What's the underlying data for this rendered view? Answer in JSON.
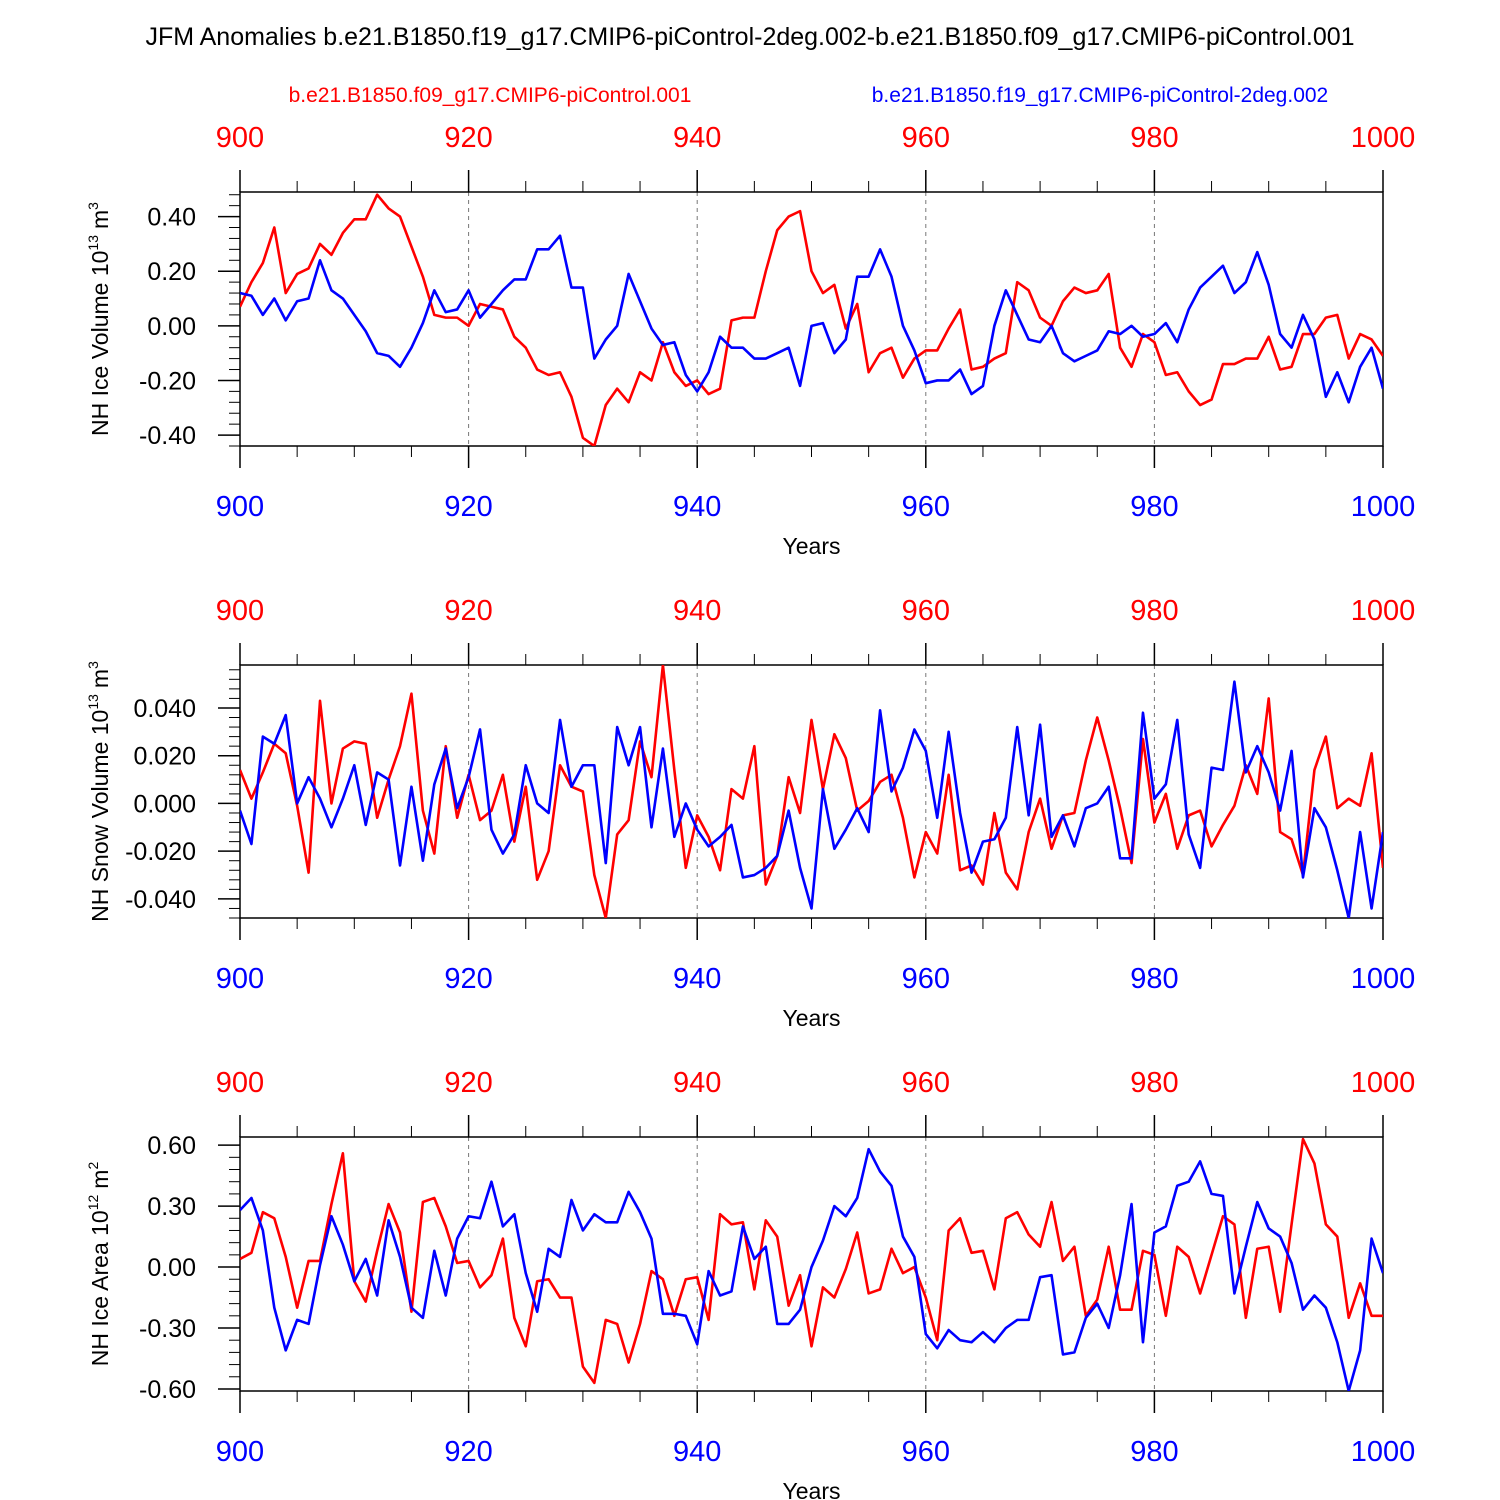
{
  "title": "JFM Anomalies b.e21.B1850.f19_g17.CMIP6-piControl-2deg.002-b.e21.B1850.f09_g17.CMIP6-piControl.001",
  "legend": {
    "red_label": "b.e21.B1850.f09_g17.CMIP6-piControl.001",
    "blue_label": "b.e21.B1850.f19_g17.CMIP6-piControl-2deg.002"
  },
  "colors": {
    "red": "#ff0000",
    "blue": "#0000ff",
    "axis": "#000000",
    "grid": "#777777"
  },
  "chart_data": [
    {
      "type": "line",
      "ylabel": "NH Ice Volume 10",
      "ylabel_exp": "13",
      "ylabel_unit": "m",
      "ylabel_unit_exp": "3",
      "xlabel": "Years",
      "xlim": [
        900,
        1000
      ],
      "ylim": [
        -0.44,
        0.49
      ],
      "xticks": [
        900,
        920,
        940,
        960,
        980,
        1000
      ],
      "xtick_labels": [
        "900",
        "920",
        "940",
        "960",
        "980",
        "1000"
      ],
      "yticks": [
        0.4,
        0.2,
        0.0,
        -0.2,
        -0.4
      ],
      "ytick_labels": [
        "0.40",
        "0.20",
        "0.00",
        "-0.20",
        "-0.40"
      ],
      "series": [
        {
          "name": "b.e21.B1850.f09_g17.CMIP6-piControl.001",
          "color": "red",
          "values": [
            0.07,
            0.16,
            0.23,
            0.36,
            0.12,
            0.19,
            0.21,
            0.3,
            0.26,
            0.34,
            0.39,
            0.39,
            0.48,
            0.43,
            0.4,
            0.29,
            0.18,
            0.04,
            0.03,
            0.03,
            0.0,
            0.08,
            0.07,
            0.06,
            -0.04,
            -0.08,
            -0.16,
            -0.18,
            -0.17,
            -0.26,
            -0.41,
            -0.44,
            -0.29,
            -0.23,
            -0.28,
            -0.17,
            -0.2,
            -0.06,
            -0.17,
            -0.22,
            -0.2,
            -0.25,
            -0.23,
            0.02,
            0.03,
            0.03,
            0.2,
            0.35,
            0.4,
            0.42,
            0.2,
            0.12,
            0.15,
            -0.01,
            0.08,
            -0.17,
            -0.1,
            -0.08,
            -0.19,
            -0.12,
            -0.09,
            -0.09,
            -0.01,
            0.06,
            -0.16,
            -0.15,
            -0.12,
            -0.1,
            0.16,
            0.13,
            0.03,
            0.0,
            0.09,
            0.14,
            0.12,
            0.13,
            0.19,
            -0.08,
            -0.15,
            -0.03,
            -0.06,
            -0.18,
            -0.17,
            -0.24,
            -0.29,
            -0.27,
            -0.14,
            -0.14,
            -0.12,
            -0.12,
            -0.04,
            -0.16,
            -0.15,
            -0.03,
            -0.03,
            0.03,
            0.04,
            -0.12,
            -0.03,
            -0.05,
            -0.11
          ]
        },
        {
          "name": "b.e21.B1850.f19_g17.CMIP6-piControl-2deg.002",
          "color": "blue",
          "values": [
            0.12,
            0.11,
            0.04,
            0.1,
            0.02,
            0.09,
            0.1,
            0.24,
            0.13,
            0.1,
            0.04,
            -0.02,
            -0.1,
            -0.11,
            -0.15,
            -0.08,
            0.01,
            0.13,
            0.05,
            0.06,
            0.13,
            0.03,
            0.08,
            0.13,
            0.17,
            0.17,
            0.28,
            0.28,
            0.33,
            0.14,
            0.14,
            -0.12,
            -0.05,
            0.0,
            0.19,
            0.09,
            -0.01,
            -0.07,
            -0.06,
            -0.18,
            -0.24,
            -0.17,
            -0.04,
            -0.08,
            -0.08,
            -0.12,
            -0.12,
            -0.1,
            -0.08,
            -0.22,
            0.0,
            0.01,
            -0.1,
            -0.05,
            0.18,
            0.18,
            0.28,
            0.18,
            0.0,
            -0.09,
            -0.21,
            -0.2,
            -0.2,
            -0.16,
            -0.25,
            -0.22,
            0.0,
            0.13,
            0.04,
            -0.05,
            -0.06,
            0.0,
            -0.1,
            -0.13,
            -0.11,
            -0.09,
            -0.02,
            -0.03,
            0.0,
            -0.04,
            -0.03,
            0.01,
            -0.06,
            0.06,
            0.14,
            0.18,
            0.22,
            0.12,
            0.16,
            0.27,
            0.15,
            -0.03,
            -0.08,
            0.04,
            -0.05,
            -0.26,
            -0.17,
            -0.28,
            -0.15,
            -0.08,
            -0.23
          ]
        }
      ]
    },
    {
      "type": "line",
      "ylabel": "NH Snow Volume 10",
      "ylabel_exp": "13",
      "ylabel_unit": "m",
      "ylabel_unit_exp": "3",
      "xlabel": "Years",
      "xlim": [
        900,
        1000
      ],
      "ylim": [
        -0.048,
        0.058
      ],
      "xticks": [
        900,
        920,
        940,
        960,
        980,
        1000
      ],
      "xtick_labels": [
        "900",
        "920",
        "940",
        "960",
        "980",
        "1000"
      ],
      "yticks": [
        0.04,
        0.02,
        0.0,
        -0.02,
        -0.04
      ],
      "ytick_labels": [
        "0.040",
        "0.020",
        "0.000",
        "-0.020",
        "-0.040"
      ],
      "series": [
        {
          "name": "b.e21.B1850.f09_g17.CMIP6-piControl.001",
          "color": "red",
          "values": [
            0.014,
            0.002,
            0.013,
            0.025,
            0.021,
            -0.001,
            -0.029,
            0.043,
            0.0,
            0.023,
            0.026,
            0.025,
            -0.006,
            0.01,
            0.024,
            0.046,
            -0.003,
            -0.021,
            0.024,
            -0.006,
            0.012,
            -0.007,
            -0.003,
            0.012,
            -0.016,
            0.007,
            -0.032,
            -0.02,
            0.016,
            0.007,
            0.005,
            -0.03,
            -0.048,
            -0.013,
            -0.007,
            0.026,
            0.011,
            0.058,
            0.014,
            -0.027,
            -0.005,
            -0.014,
            -0.028,
            0.006,
            0.002,
            0.024,
            -0.034,
            -0.022,
            0.011,
            -0.004,
            0.035,
            0.006,
            0.029,
            0.019,
            -0.003,
            0.001,
            0.009,
            0.012,
            -0.006,
            -0.031,
            -0.012,
            -0.021,
            0.012,
            -0.028,
            -0.026,
            -0.034,
            -0.004,
            -0.029,
            -0.036,
            -0.012,
            0.002,
            -0.019,
            -0.005,
            -0.004,
            0.018,
            0.036,
            0.018,
            -0.002,
            -0.025,
            0.027,
            -0.008,
            0.004,
            -0.019,
            -0.005,
            -0.003,
            -0.018,
            -0.009,
            -0.001,
            0.016,
            0.004,
            0.044,
            -0.012,
            -0.015,
            -0.03,
            0.014,
            0.028,
            -0.002,
            0.002,
            -0.001,
            0.021,
            -0.027
          ]
        },
        {
          "name": "b.e21.B1850.f19_g17.CMIP6-piControl-2deg.002",
          "color": "blue",
          "values": [
            -0.003,
            -0.017,
            0.028,
            0.025,
            0.037,
            0.0,
            0.011,
            0.002,
            -0.01,
            0.002,
            0.016,
            -0.009,
            0.013,
            0.01,
            -0.026,
            0.007,
            -0.024,
            0.008,
            0.023,
            -0.002,
            0.011,
            0.031,
            -0.011,
            -0.021,
            -0.013,
            0.016,
            0.0,
            -0.004,
            0.035,
            0.007,
            0.016,
            0.016,
            -0.025,
            0.032,
            0.016,
            0.032,
            -0.01,
            0.023,
            -0.014,
            0.0,
            -0.011,
            -0.018,
            -0.014,
            -0.009,
            -0.031,
            -0.03,
            -0.027,
            -0.022,
            -0.003,
            -0.027,
            -0.044,
            0.006,
            -0.019,
            -0.011,
            -0.002,
            -0.012,
            0.039,
            0.005,
            0.015,
            0.031,
            0.022,
            -0.006,
            0.03,
            -0.004,
            -0.029,
            -0.016,
            -0.015,
            -0.006,
            0.032,
            -0.005,
            0.033,
            -0.014,
            -0.005,
            -0.018,
            -0.002,
            0.0,
            0.007,
            -0.023,
            -0.023,
            0.038,
            0.002,
            0.008,
            0.035,
            -0.013,
            -0.027,
            0.015,
            0.014,
            0.051,
            0.013,
            0.024,
            0.013,
            -0.003,
            0.022,
            -0.031,
            -0.002,
            -0.01,
            -0.028,
            -0.048,
            -0.012,
            -0.044,
            -0.012
          ]
        }
      ]
    },
    {
      "type": "line",
      "ylabel": "NH Ice Area 10",
      "ylabel_exp": "12",
      "ylabel_unit": "m",
      "ylabel_unit_exp": "2",
      "xlabel": "Years",
      "xlim": [
        900,
        1000
      ],
      "ylim": [
        -0.61,
        0.64
      ],
      "xticks": [
        900,
        920,
        940,
        960,
        980,
        1000
      ],
      "xtick_labels": [
        "900",
        "920",
        "940",
        "960",
        "980",
        "1000"
      ],
      "yticks": [
        0.6,
        0.3,
        0.0,
        -0.3,
        -0.6
      ],
      "ytick_labels": [
        "0.60",
        "0.30",
        "0.00",
        "-0.30",
        "-0.60"
      ],
      "series": [
        {
          "name": "b.e21.B1850.f09_g17.CMIP6-piControl.001",
          "color": "red",
          "values": [
            0.04,
            0.07,
            0.27,
            0.24,
            0.05,
            -0.2,
            0.03,
            0.03,
            0.31,
            0.56,
            -0.07,
            -0.17,
            0.08,
            0.31,
            0.17,
            -0.22,
            0.32,
            0.34,
            0.2,
            0.02,
            0.03,
            -0.1,
            -0.04,
            0.14,
            -0.25,
            -0.39,
            -0.07,
            -0.06,
            -0.15,
            -0.15,
            -0.49,
            -0.57,
            -0.26,
            -0.28,
            -0.47,
            -0.28,
            -0.02,
            -0.06,
            -0.24,
            -0.06,
            -0.05,
            -0.26,
            0.26,
            0.21,
            0.22,
            -0.11,
            0.23,
            0.15,
            -0.19,
            -0.04,
            -0.39,
            -0.1,
            -0.15,
            -0.01,
            0.17,
            -0.13,
            -0.11,
            0.09,
            -0.03,
            0.0,
            -0.15,
            -0.36,
            0.18,
            0.24,
            0.07,
            0.08,
            -0.11,
            0.24,
            0.27,
            0.16,
            0.1,
            0.32,
            0.03,
            0.1,
            -0.24,
            -0.16,
            0.1,
            -0.21,
            -0.21,
            0.08,
            0.06,
            -0.24,
            0.1,
            0.05,
            -0.13,
            0.06,
            0.25,
            0.21,
            -0.25,
            0.09,
            0.1,
            -0.22,
            0.21,
            0.63,
            0.51,
            0.21,
            0.15,
            -0.25,
            -0.08,
            -0.24,
            -0.24
          ]
        },
        {
          "name": "b.e21.B1850.f19_g17.CMIP6-piControl-2deg.002",
          "color": "blue",
          "values": [
            0.28,
            0.34,
            0.18,
            -0.2,
            -0.41,
            -0.26,
            -0.28,
            0.01,
            0.25,
            0.11,
            -0.07,
            0.04,
            -0.14,
            0.23,
            0.05,
            -0.2,
            -0.25,
            0.08,
            -0.14,
            0.14,
            0.25,
            0.24,
            0.42,
            0.2,
            0.26,
            -0.03,
            -0.22,
            0.09,
            0.05,
            0.33,
            0.18,
            0.26,
            0.22,
            0.22,
            0.37,
            0.27,
            0.14,
            -0.23,
            -0.23,
            -0.24,
            -0.38,
            -0.02,
            -0.14,
            -0.12,
            0.2,
            0.04,
            0.1,
            -0.28,
            -0.28,
            -0.21,
            0.0,
            0.13,
            0.3,
            0.25,
            0.34,
            0.58,
            0.47,
            0.4,
            0.15,
            0.05,
            -0.33,
            -0.4,
            -0.31,
            -0.36,
            -0.37,
            -0.32,
            -0.37,
            -0.3,
            -0.26,
            -0.26,
            -0.05,
            -0.04,
            -0.43,
            -0.42,
            -0.25,
            -0.18,
            -0.3,
            -0.04,
            0.31,
            -0.37,
            0.17,
            0.2,
            0.4,
            0.42,
            0.52,
            0.36,
            0.35,
            -0.13,
            0.1,
            0.32,
            0.19,
            0.15,
            0.02,
            -0.21,
            -0.14,
            -0.2,
            -0.37,
            -0.61,
            -0.41,
            0.14,
            -0.03
          ]
        }
      ]
    }
  ]
}
